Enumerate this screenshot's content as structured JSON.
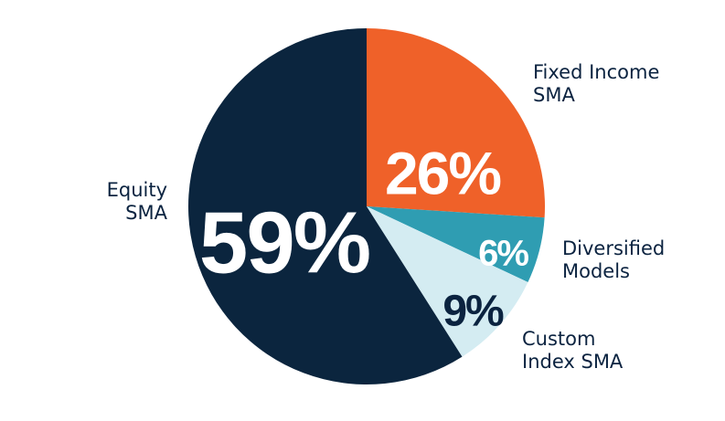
{
  "chart_data": {
    "type": "pie",
    "slices": [
      {
        "label": [
          "Fixed Income",
          "SMA"
        ],
        "value": 26,
        "display": "26%",
        "color": "#ef6129",
        "text_color": "#ffffff"
      },
      {
        "label": [
          "Diversified",
          "Models"
        ],
        "value": 6,
        "display": "6%",
        "color": "#2f9db2",
        "text_color": "#ffffff"
      },
      {
        "label": [
          "Custom",
          "Index SMA"
        ],
        "value": 9,
        "display": "9%",
        "color": "#d4ecf2",
        "text_color": "#0b2340"
      },
      {
        "label": [
          "Equity",
          "SMA"
        ],
        "value": 59,
        "display": "59%",
        "color": "#0b253e",
        "text_color": "#ffffff"
      }
    ]
  }
}
